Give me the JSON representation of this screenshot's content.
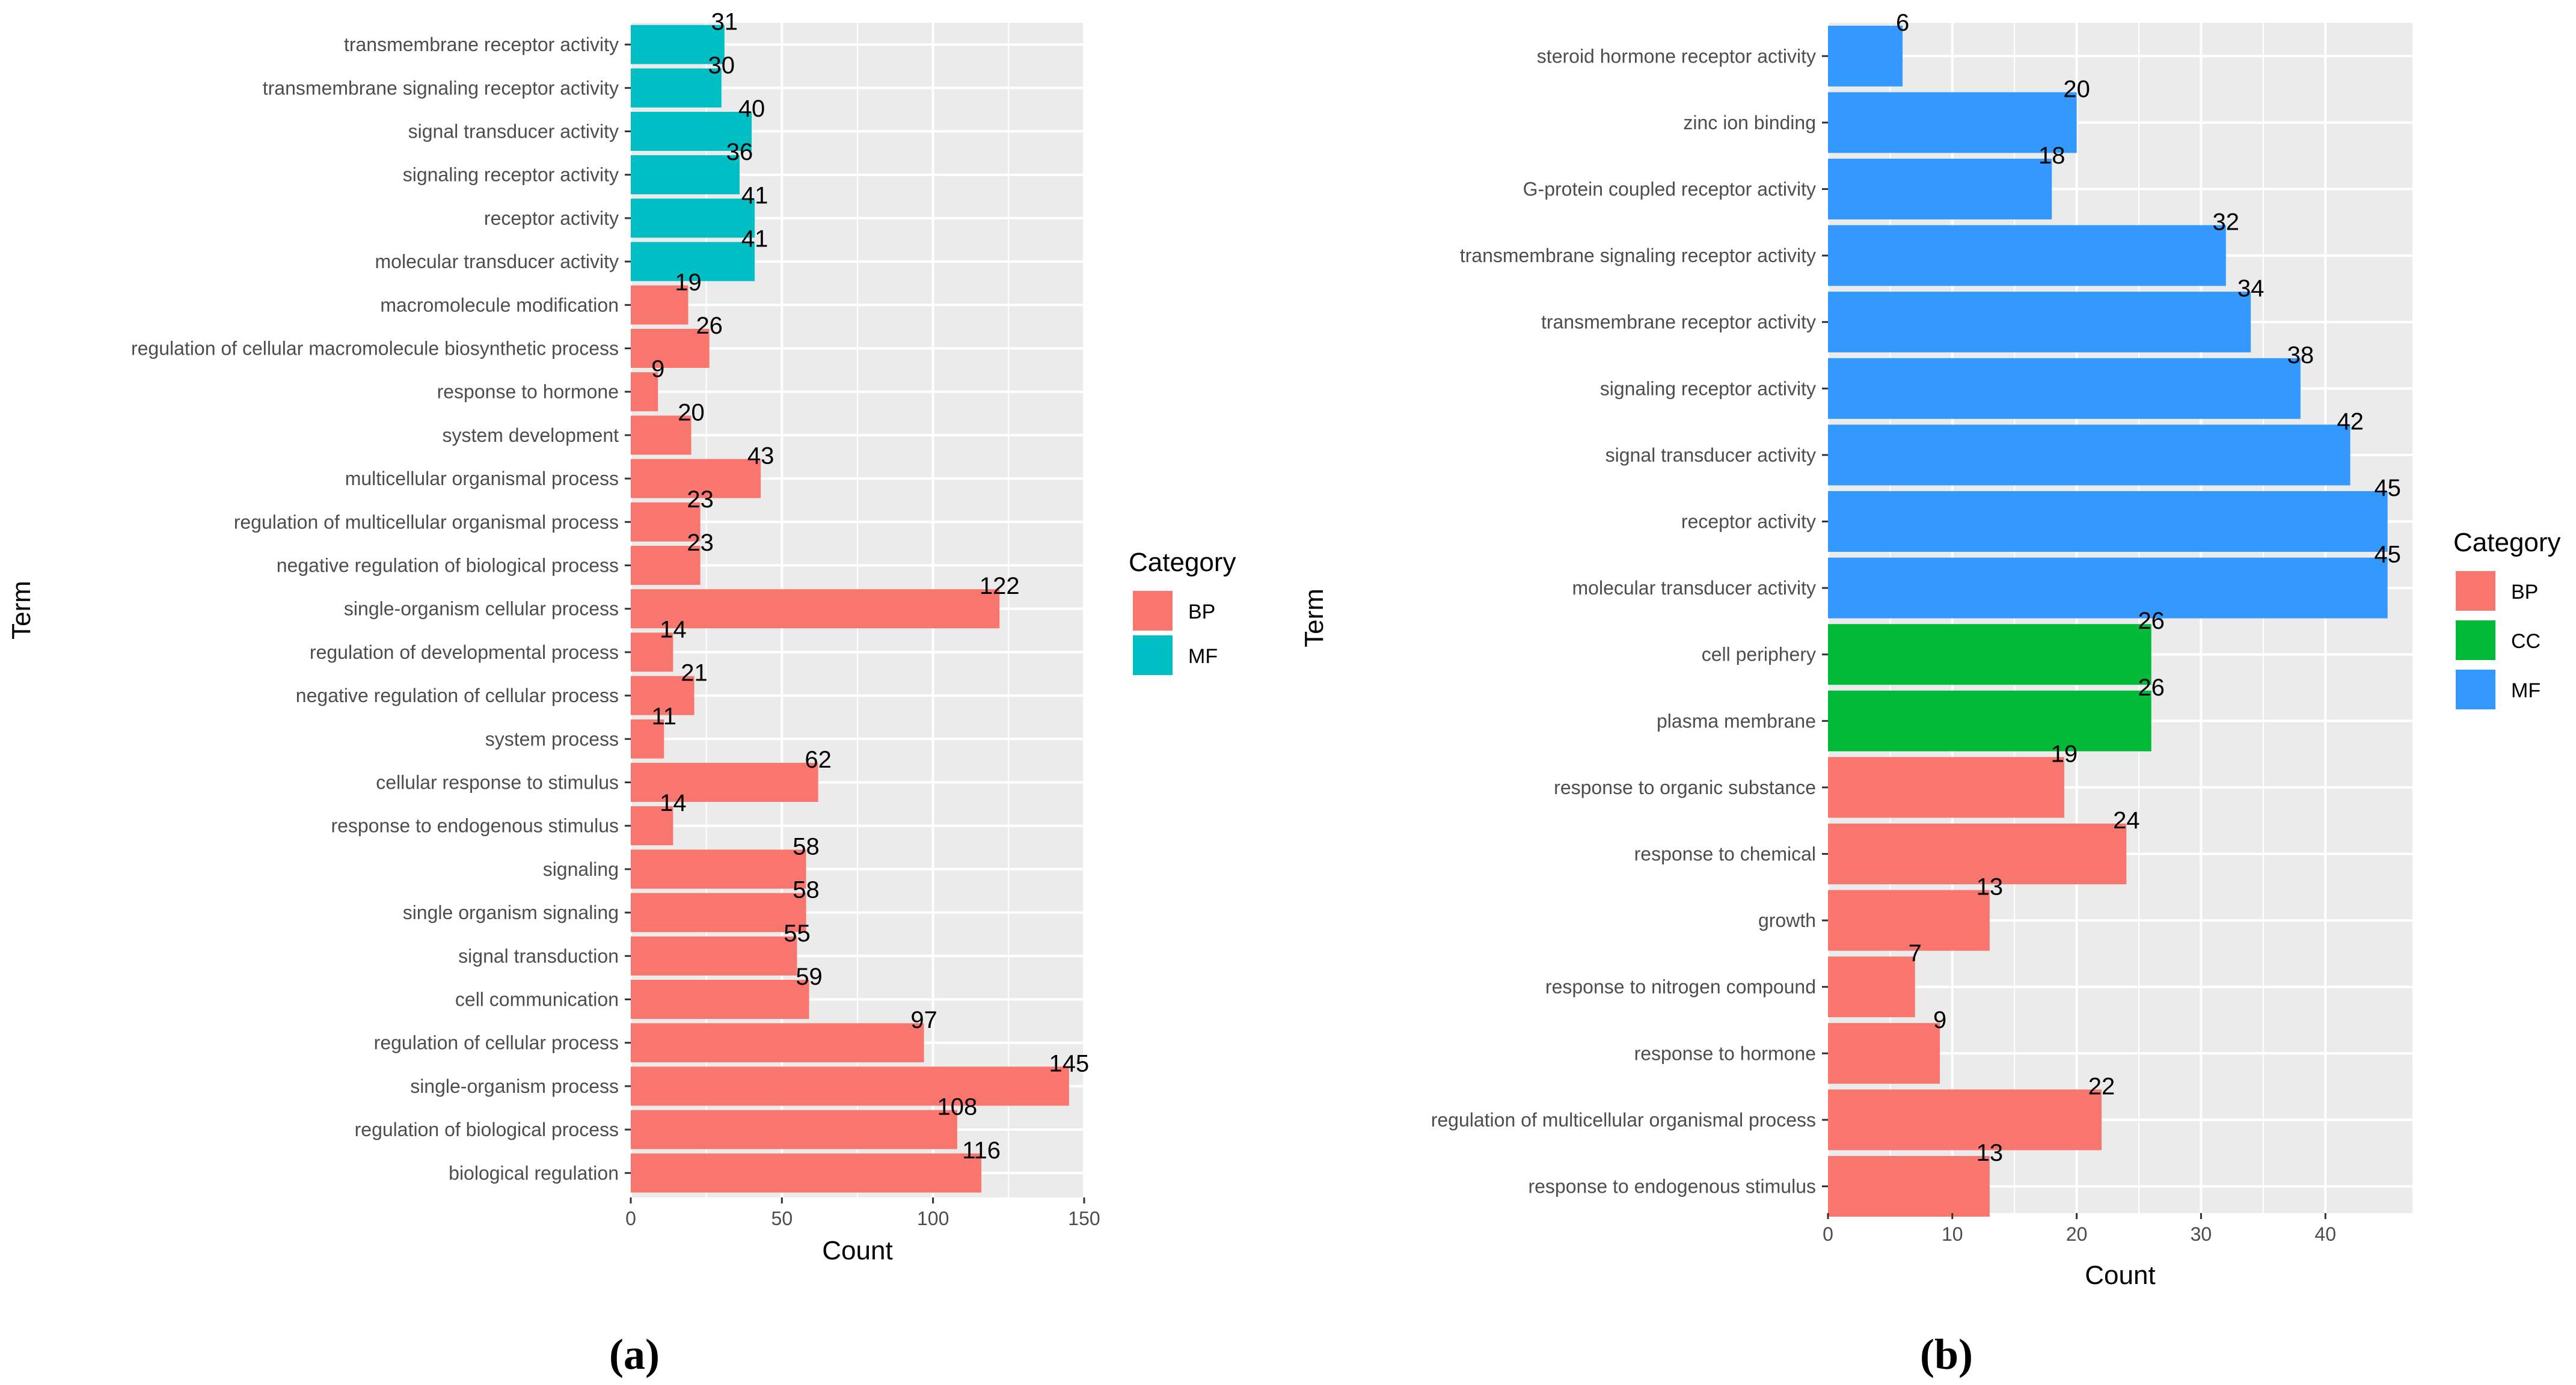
{
  "chart_data": [
    {
      "type": "bar",
      "orientation": "horizontal",
      "panel_label": "(a)",
      "xlabel": "Count",
      "ylabel": "Term",
      "xlim": [
        0,
        150
      ],
      "xticks": [
        0,
        50,
        100,
        150
      ],
      "legend_title": "Category",
      "legend": [
        {
          "name": "BP",
          "color": "#F8766D"
        },
        {
          "name": "MF",
          "color": "#00BFC4"
        }
      ],
      "categories": [
        "transmembrane receptor activity",
        "transmembrane signaling receptor activity",
        "signal transducer activity",
        "signaling receptor activity",
        "receptor activity",
        "molecular transducer activity",
        "macromolecule modification",
        "regulation of cellular macromolecule biosynthetic process",
        "response to hormone",
        "system development",
        "multicellular organismal process",
        "regulation of multicellular organismal process",
        "negative regulation of biological process",
        "single-organism cellular process",
        "regulation of developmental process",
        "negative regulation of cellular process",
        "system process",
        "cellular response to stimulus",
        "response to endogenous stimulus",
        "signaling",
        "single organism signaling",
        "signal transduction",
        "cell communication",
        "regulation of cellular process",
        "single-organism process",
        "regulation of biological process",
        "biological regulation"
      ],
      "values": [
        31,
        30,
        40,
        36,
        41,
        41,
        19,
        26,
        9,
        20,
        43,
        23,
        23,
        122,
        14,
        21,
        11,
        62,
        14,
        58,
        58,
        55,
        59,
        97,
        145,
        108,
        116
      ],
      "groups": [
        "MF",
        "MF",
        "MF",
        "MF",
        "MF",
        "MF",
        "BP",
        "BP",
        "BP",
        "BP",
        "BP",
        "BP",
        "BP",
        "BP",
        "BP",
        "BP",
        "BP",
        "BP",
        "BP",
        "BP",
        "BP",
        "BP",
        "BP",
        "BP",
        "BP",
        "BP",
        "BP"
      ]
    },
    {
      "type": "bar",
      "orientation": "horizontal",
      "panel_label": "(b)",
      "xlabel": "Count",
      "ylabel": "Term",
      "xlim": [
        0,
        47
      ],
      "xticks": [
        0,
        10,
        20,
        30,
        40
      ],
      "legend_title": "Category",
      "legend": [
        {
          "name": "BP",
          "color": "#F8766D"
        },
        {
          "name": "CC",
          "color": "#00BA38"
        },
        {
          "name": "MF",
          "color": "#3399FF"
        }
      ],
      "categories": [
        "steroid hormone receptor activity",
        "zinc ion binding",
        "G-protein coupled receptor activity",
        "transmembrane signaling receptor activity",
        "transmembrane receptor activity",
        "signaling receptor activity",
        "signal transducer activity",
        "receptor activity",
        "molecular transducer activity",
        "cell periphery",
        "plasma membrane",
        "response to organic substance",
        "response to chemical",
        "growth",
        "response to nitrogen compound",
        "response to hormone",
        "regulation of multicellular organismal process",
        "response to endogenous stimulus"
      ],
      "values": [
        6,
        20,
        18,
        32,
        34,
        38,
        42,
        45,
        45,
        26,
        26,
        19,
        24,
        13,
        7,
        9,
        22,
        13
      ],
      "groups": [
        "MF",
        "MF",
        "MF",
        "MF",
        "MF",
        "MF",
        "MF",
        "MF",
        "MF",
        "CC",
        "CC",
        "BP",
        "BP",
        "BP",
        "BP",
        "BP",
        "BP",
        "BP"
      ]
    }
  ]
}
